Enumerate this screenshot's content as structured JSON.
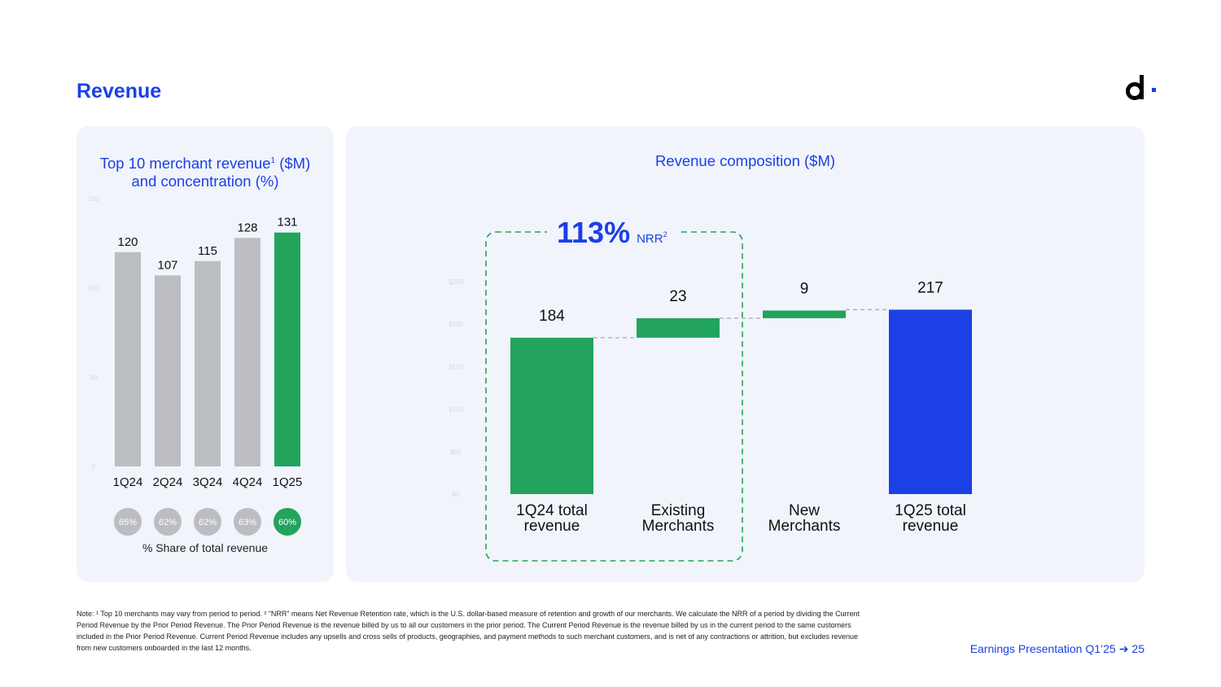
{
  "page": {
    "title": "Revenue",
    "footer_label": "Earnings Presentation Q1’25",
    "footer_arrow": "➔",
    "page_number": "25",
    "footnote": "Note: ¹ Top 10 merchants may vary from period to period.  ² “NRR” means Net Revenue Retention rate, which is the U.S. dollar-based measure of retention and growth of our merchants. We calculate the NRR of a period by dividing the Current Period Revenue by the Prior Period Revenue. The Prior Period Revenue is the revenue billed by us to all our customers in the prior period. The Current Period Revenue is the revenue billed by us in the current period to the same customers included in the Prior Period Revenue. Current Period Revenue includes any upsells and cross sells of products, geographies, and payment methods to such merchant customers, and is net of any contractions or attrition, but excludes revenue from new customers onboarded in the last 12 months."
  },
  "colors": {
    "brand_blue": "#1a40e6",
    "green": "#22a45d",
    "gray_bar": "#bcbdc1",
    "gray_circle": "#bcbdc1",
    "panel_bg": "#f1f4fb"
  },
  "chart_data": [
    {
      "type": "bar",
      "title_main": "Top 10 merchant revenue",
      "title_sup": "1",
      "title_rest": " ($M)",
      "title_line2": "and concentration (%)",
      "categories": [
        "1Q24",
        "2Q24",
        "3Q24",
        "4Q24",
        "1Q25"
      ],
      "values": [
        120,
        107,
        115,
        128,
        131
      ],
      "highlight_index": 4,
      "ylim": [
        0,
        150
      ],
      "yticks": [
        0,
        50,
        100,
        150
      ],
      "share_of_total": [
        "65%",
        "62%",
        "62%",
        "63%",
        "60%"
      ],
      "share_caption": "% Share of total revenue"
    },
    {
      "type": "waterfall",
      "title": "Revenue composition ($M)",
      "ylim": [
        0,
        250
      ],
      "yticks": [
        "$0",
        "$50",
        "$100",
        "$150",
        "$200",
        "$250"
      ],
      "steps": [
        {
          "label_line1": "1Q24 total",
          "label_line2": "revenue",
          "value": 184,
          "kind": "total"
        },
        {
          "label_line1": "Existing",
          "label_line2": "Merchants",
          "value": 23,
          "kind": "increase"
        },
        {
          "label_line1": "New",
          "label_line2": "Merchants",
          "value": 9,
          "kind": "increase"
        },
        {
          "label_line1": "1Q25 total",
          "label_line2": "revenue",
          "value": 217,
          "kind": "total"
        }
      ],
      "nrr_value": "113%",
      "nrr_label": "NRR",
      "nrr_sup": "2"
    }
  ]
}
